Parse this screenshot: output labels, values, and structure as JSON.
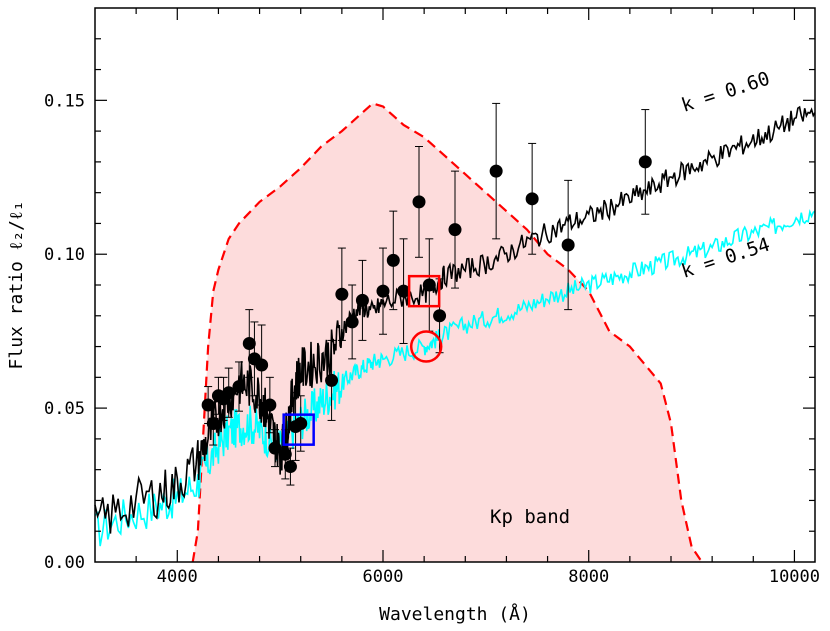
{
  "chart_data": {
    "type": "line",
    "xlabel": "Wavelength (Å)",
    "ylabel": "Flux ratio ℓ₂/ℓ₁",
    "xlim": [
      3200,
      10200
    ],
    "ylim": [
      0.0,
      0.18
    ],
    "x_ticks": [
      4000,
      6000,
      8000,
      10000
    ],
    "x_tick_labels": [
      "4000",
      "6000",
      "8000",
      "10000"
    ],
    "y_ticks": [
      0.0,
      0.05,
      0.1,
      0.15
    ],
    "y_tick_labels": [
      "0.00",
      "0.05",
      "0.10",
      "0.15"
    ],
    "grid": false,
    "colors": {
      "spectrum_k060": "#000000",
      "spectrum_k054": "#00ffff",
      "kp_band_line": "#ff0000",
      "kp_band_fill": "#fddcdc",
      "red_markers": "#ff0000",
      "blue_marker": "#0000ff",
      "points": "#000000"
    },
    "annotations": {
      "k060": "k = 0.60",
      "k054": "k = 0.54",
      "kp": "Kp band"
    },
    "series": [
      {
        "name": "k = 0.60",
        "color": "#000000",
        "x": [
          3200,
          3500,
          3800,
          4000,
          4200,
          4300,
          4400,
          4500,
          4600,
          4700,
          4800,
          4850,
          4900,
          4950,
          5000,
          5050,
          5100,
          5150,
          5200,
          5300,
          5400,
          5500,
          5600,
          5700,
          5800,
          5900,
          6000,
          6200,
          6400,
          6500,
          6600,
          6800,
          7000,
          7200,
          7400,
          7600,
          7800,
          8000,
          8200,
          8400,
          8600,
          8800,
          9000,
          9200,
          9400,
          9600,
          9800,
          10000,
          10200
        ],
        "y": [
          0.012,
          0.018,
          0.022,
          0.025,
          0.033,
          0.04,
          0.048,
          0.053,
          0.058,
          0.057,
          0.054,
          0.05,
          0.045,
          0.04,
          0.036,
          0.04,
          0.05,
          0.058,
          0.062,
          0.064,
          0.066,
          0.068,
          0.075,
          0.08,
          0.083,
          0.081,
          0.084,
          0.086,
          0.087,
          0.09,
          0.093,
          0.095,
          0.097,
          0.1,
          0.104,
          0.107,
          0.11,
          0.112,
          0.115,
          0.118,
          0.121,
          0.125,
          0.128,
          0.131,
          0.134,
          0.137,
          0.14,
          0.144,
          0.146
        ]
      },
      {
        "name": "k = 0.54",
        "color": "#00ffff",
        "x": [
          3200,
          3500,
          3800,
          4000,
          4200,
          4300,
          4400,
          4500,
          4600,
          4700,
          4800,
          4900,
          5000,
          5100,
          5200,
          5300,
          5400,
          5500,
          5600,
          5700,
          5800,
          5900,
          6000,
          6200,
          6400,
          6500,
          6600,
          6800,
          7000,
          7200,
          7400,
          7600,
          7800,
          8000,
          8200,
          8400,
          8600,
          8800,
          9000,
          9200,
          9400,
          9600,
          9800,
          10000,
          10200
        ],
        "y": [
          0.01,
          0.015,
          0.018,
          0.021,
          0.026,
          0.032,
          0.038,
          0.042,
          0.044,
          0.045,
          0.043,
          0.04,
          0.038,
          0.042,
          0.046,
          0.049,
          0.052,
          0.055,
          0.058,
          0.061,
          0.063,
          0.065,
          0.066,
          0.068,
          0.07,
          0.072,
          0.074,
          0.077,
          0.079,
          0.081,
          0.083,
          0.086,
          0.088,
          0.09,
          0.092,
          0.094,
          0.096,
          0.098,
          0.1,
          0.102,
          0.105,
          0.107,
          0.109,
          0.112,
          0.114
        ]
      },
      {
        "name": "Kp band",
        "color": "#ff0000",
        "x": [
          4150,
          4200,
          4250,
          4300,
          4350,
          4400,
          4500,
          4600,
          4800,
          5000,
          5200,
          5400,
          5600,
          5800,
          5900,
          6000,
          6100,
          6200,
          6400,
          6600,
          6800,
          7000,
          7200,
          7400,
          7600,
          7800,
          8000,
          8200,
          8400,
          8600,
          8700,
          8800,
          8900,
          9000,
          9100
        ],
        "y": [
          0.0,
          0.01,
          0.04,
          0.07,
          0.088,
          0.095,
          0.105,
          0.11,
          0.117,
          0.122,
          0.128,
          0.135,
          0.14,
          0.146,
          0.149,
          0.148,
          0.145,
          0.142,
          0.138,
          0.132,
          0.126,
          0.12,
          0.114,
          0.108,
          0.1,
          0.095,
          0.088,
          0.075,
          0.07,
          0.062,
          0.058,
          0.045,
          0.02,
          0.005,
          0.0
        ]
      }
    ],
    "points": [
      {
        "x": 4300,
        "y": 0.051,
        "err": 0.006
      },
      {
        "x": 4350,
        "y": 0.045,
        "err": 0.007
      },
      {
        "x": 4400,
        "y": 0.054,
        "err": 0.006
      },
      {
        "x": 4450,
        "y": 0.053,
        "err": 0.007
      },
      {
        "x": 4500,
        "y": 0.055,
        "err": 0.008
      },
      {
        "x": 4600,
        "y": 0.057,
        "err": 0.008
      },
      {
        "x": 4700,
        "y": 0.071,
        "err": 0.011
      },
      {
        "x": 4750,
        "y": 0.066,
        "err": 0.012
      },
      {
        "x": 4820,
        "y": 0.064,
        "err": 0.013
      },
      {
        "x": 4900,
        "y": 0.051,
        "err": 0.009
      },
      {
        "x": 4950,
        "y": 0.037,
        "err": 0.006
      },
      {
        "x": 5050,
        "y": 0.035,
        "err": 0.008
      },
      {
        "x": 5100,
        "y": 0.031,
        "err": 0.006
      },
      {
        "x": 5150,
        "y": 0.044,
        "err": 0.011
      },
      {
        "x": 5200,
        "y": 0.045,
        "err": 0.009
      },
      {
        "x": 5500,
        "y": 0.059,
        "err": 0.013
      },
      {
        "x": 5600,
        "y": 0.087,
        "err": 0.015
      },
      {
        "x": 5700,
        "y": 0.078,
        "err": 0.012
      },
      {
        "x": 5800,
        "y": 0.085,
        "err": 0.013
      },
      {
        "x": 6000,
        "y": 0.088,
        "err": 0.014
      },
      {
        "x": 6100,
        "y": 0.098,
        "err": 0.016
      },
      {
        "x": 6200,
        "y": 0.088,
        "err": 0.017
      },
      {
        "x": 6350,
        "y": 0.117,
        "err": 0.018
      },
      {
        "x": 6450,
        "y": 0.09,
        "err": 0.015
      },
      {
        "x": 6550,
        "y": 0.08,
        "err": 0.012
      },
      {
        "x": 6700,
        "y": 0.108,
        "err": 0.019
      },
      {
        "x": 7100,
        "y": 0.127,
        "err": 0.022
      },
      {
        "x": 7450,
        "y": 0.118,
        "err": 0.018
      },
      {
        "x": 7800,
        "y": 0.103,
        "err": 0.021
      },
      {
        "x": 8550,
        "y": 0.13,
        "err": 0.017
      }
    ],
    "markers": [
      {
        "shape": "square",
        "color": "#ff0000",
        "x": 6400,
        "y": 0.088
      },
      {
        "shape": "circle",
        "color": "#ff0000",
        "x": 6420,
        "y": 0.07
      },
      {
        "shape": "square",
        "color": "#0000ff",
        "x": 5180,
        "y": 0.043
      }
    ]
  }
}
